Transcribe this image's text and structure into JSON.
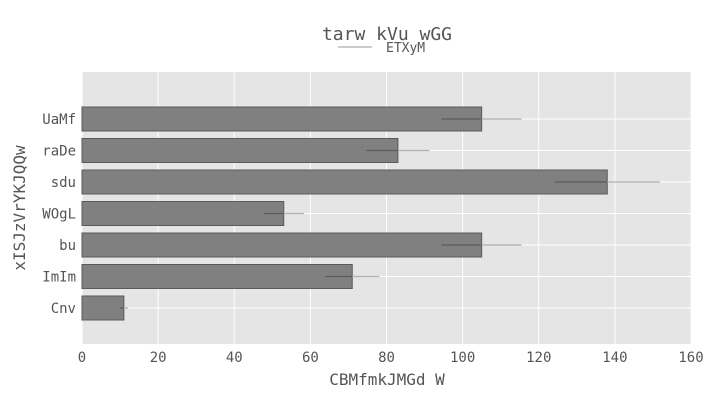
{
  "chart_data": {
    "type": "bar",
    "orientation": "horizontal",
    "title": "tarw kVu wGG",
    "xlabel": "CBMfmkJMGd W",
    "ylabel": "xISJzVrYKJQQw",
    "categories": [
      "UaMf",
      "raDe",
      "sdu",
      "WOgL",
      "bu",
      "ImIm",
      "Cnv"
    ],
    "series": [
      {
        "name": "ETXyM",
        "values": [
          105,
          83,
          138,
          53,
          105,
          71,
          11
        ],
        "errors": [
          10.5,
          8.3,
          13.8,
          5.3,
          10.5,
          7.1,
          1.1
        ]
      }
    ],
    "xlim": [
      0,
      160
    ],
    "xticks": [
      0,
      20,
      40,
      60,
      80,
      100,
      120,
      140,
      160
    ],
    "grid": true,
    "legend_position": "top-center",
    "colors": {
      "bar": "#808080",
      "bar_edge": "#5a5a5a",
      "error": "#b0b0b0",
      "background": "#e5e5e5",
      "grid": "#ffffff",
      "text": "#555555",
      "legend_line": "#bbbbbb"
    }
  }
}
